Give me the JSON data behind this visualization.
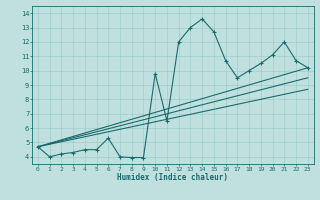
{
  "xlabel": "Humidex (Indice chaleur)",
  "background_color": "#c0e0e0",
  "grid_color": "#a0cccc",
  "line_color": "#1a6b6b",
  "xlim": [
    -0.5,
    23.5
  ],
  "ylim": [
    3.5,
    14.5
  ],
  "yticks": [
    4,
    5,
    6,
    7,
    8,
    9,
    10,
    11,
    12,
    13,
    14
  ],
  "xticks": [
    0,
    1,
    2,
    3,
    4,
    5,
    6,
    7,
    8,
    9,
    10,
    11,
    12,
    13,
    14,
    15,
    16,
    17,
    18,
    19,
    20,
    21,
    22,
    23
  ],
  "main_line": {
    "x": [
      0,
      1,
      2,
      3,
      4,
      5,
      6,
      7,
      8,
      9,
      10,
      11,
      12,
      13,
      14,
      15,
      16,
      17,
      18,
      19,
      20,
      21,
      22,
      23
    ],
    "y": [
      4.7,
      4.0,
      4.2,
      4.3,
      4.5,
      4.5,
      5.3,
      4.0,
      3.95,
      3.95,
      9.8,
      6.5,
      12.0,
      13.0,
      13.6,
      12.7,
      10.7,
      9.5,
      10.0,
      10.5,
      11.1,
      12.0,
      10.7,
      10.2
    ]
  },
  "trend_lines": [
    {
      "x": [
        0,
        23
      ],
      "y": [
        4.7,
        10.2
      ]
    },
    {
      "x": [
        0,
        23
      ],
      "y": [
        4.7,
        9.5
      ]
    },
    {
      "x": [
        0,
        23
      ],
      "y": [
        4.7,
        8.7
      ]
    }
  ]
}
